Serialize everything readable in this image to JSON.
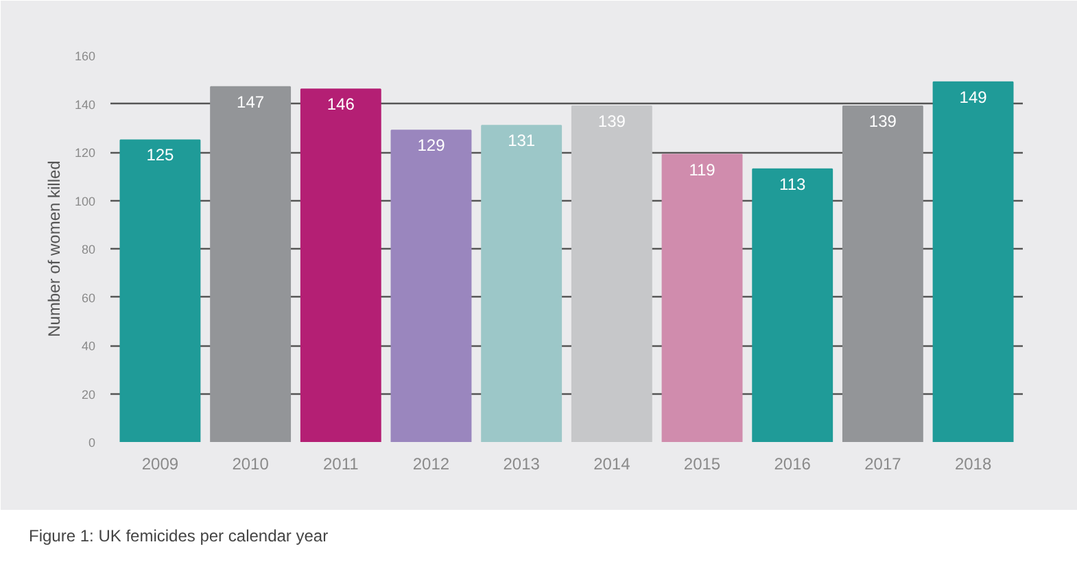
{
  "chart_data": {
    "type": "bar",
    "ylabel": "Number of women killed",
    "categories": [
      "2009",
      "2010",
      "2011",
      "2012",
      "2013",
      "2014",
      "2015",
      "2016",
      "2017",
      "2018"
    ],
    "values": [
      125,
      147,
      146,
      129,
      131,
      139,
      119,
      113,
      139,
      149
    ],
    "colors": [
      "#1f9b98",
      "#939598",
      "#b41f74",
      "#9a86be",
      "#9cc7c8",
      "#c6c7c9",
      "#d08cad",
      "#1f9b98",
      "#939598",
      "#1f9b98"
    ],
    "ylim": [
      0,
      160
    ],
    "yticks": [
      0,
      20,
      40,
      60,
      80,
      100,
      120,
      140,
      160
    ],
    "grid": "y",
    "data_labels": true,
    "annotations": [
      "Figure 1: UK femicides per calendar year"
    ]
  }
}
